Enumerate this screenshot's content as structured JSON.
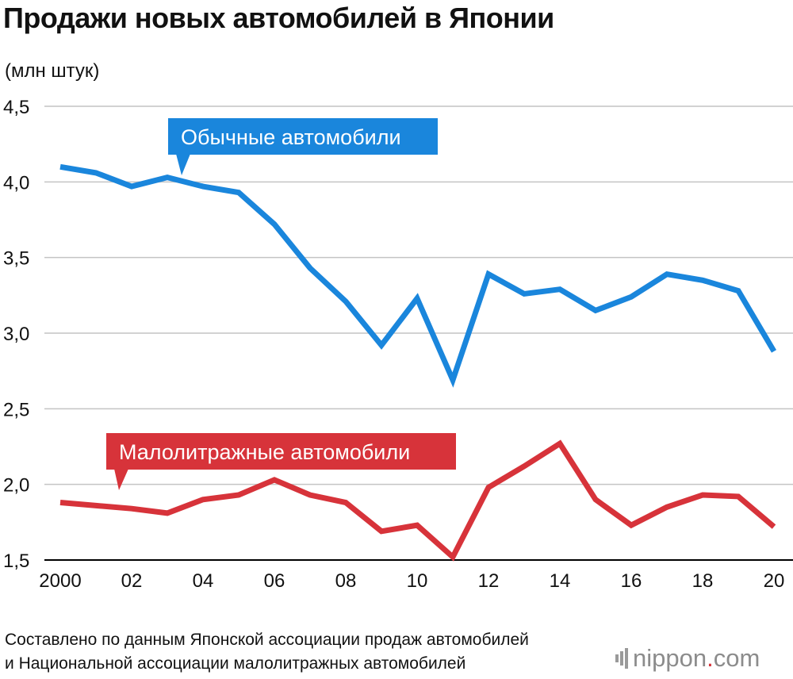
{
  "title": "Продажи новых автомобилей в Японии",
  "unit_label": "(млн штук)",
  "source_lines": [
    "Составлено по данным Японской ассоциации продаж автомобилей",
    "и Национальной ассоциации малолитражных автомобилей"
  ],
  "logo": {
    "main": "nippon",
    "dot": ".",
    "tld": "com"
  },
  "colors": {
    "regular": "#1a86dc",
    "small": "#d7333a",
    "grid": "#c4c4c4",
    "logo": "#8c8c8c"
  },
  "chart_data": {
    "type": "line",
    "title": "Продажи новых автомобилей в Японии",
    "ylabel": "(млн штук)",
    "xlabel": "",
    "ylim": [
      1.5,
      4.5
    ],
    "xlim": [
      2000,
      2020
    ],
    "y_ticks": [
      1.5,
      2.0,
      2.5,
      3.0,
      3.5,
      4.0,
      4.5
    ],
    "y_tick_labels": [
      "1,5",
      "2,0",
      "2,5",
      "3,0",
      "3,5",
      "4,0",
      "4,5"
    ],
    "x_ticks": [
      2000,
      2002,
      2004,
      2006,
      2008,
      2010,
      2012,
      2014,
      2016,
      2018,
      2020
    ],
    "x_tick_labels": [
      "2000",
      "02",
      "04",
      "06",
      "08",
      "10",
      "12",
      "14",
      "16",
      "18",
      "20"
    ],
    "grid": "horizontal",
    "x": [
      2000,
      2001,
      2002,
      2003,
      2004,
      2005,
      2006,
      2007,
      2008,
      2009,
      2010,
      2011,
      2012,
      2013,
      2014,
      2015,
      2016,
      2017,
      2018,
      2019,
      2020
    ],
    "series": [
      {
        "name": "Обычные автомобили",
        "color": "#1a86dc",
        "values": [
          4.1,
          4.06,
          3.97,
          4.03,
          3.97,
          3.93,
          3.72,
          3.43,
          3.21,
          2.92,
          3.23,
          2.69,
          3.39,
          3.26,
          3.29,
          3.15,
          3.24,
          3.39,
          3.35,
          3.28,
          2.88
        ]
      },
      {
        "name": "Малолитражные автомобили",
        "color": "#d7333a",
        "values": [
          1.88,
          1.86,
          1.84,
          1.81,
          1.9,
          1.93,
          2.03,
          1.93,
          1.88,
          1.69,
          1.73,
          1.52,
          1.98,
          2.12,
          2.27,
          1.9,
          1.73,
          1.85,
          1.93,
          1.92,
          1.72
        ]
      }
    ]
  }
}
